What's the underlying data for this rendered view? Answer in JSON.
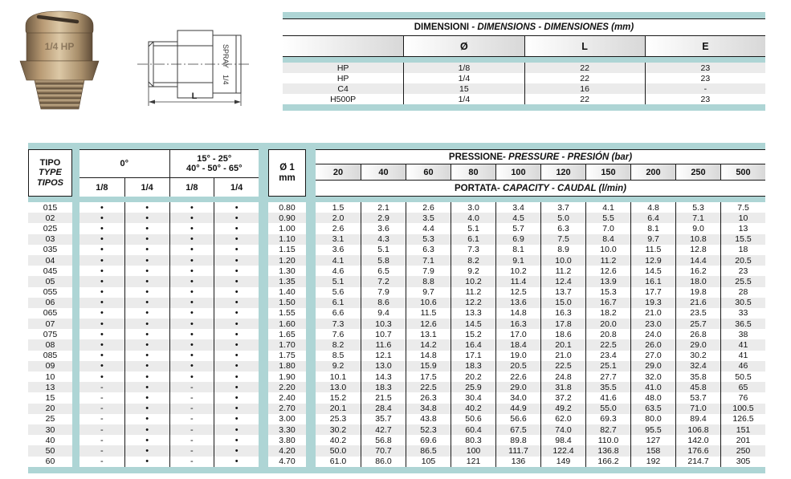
{
  "colors": {
    "teal": "#aed5d5",
    "stripe": "#ebebeb",
    "header_gradient_start": "#ffffff",
    "header_gradient_end": "#d8d8d8",
    "line": "#1a1a1a",
    "brass_light": "#dcc8a6",
    "brass_mid": "#b0946e",
    "brass_dark": "#6e5a42"
  },
  "technical_drawing": {
    "dimension_label": "L",
    "body_text_line1": "SPRAY",
    "body_text_line2": "1/4"
  },
  "dimensions_table": {
    "title_main": "DIMENSIONI",
    "title_rest": " - DIMENSIONS - DIMENSIONES (mm)",
    "columns": [
      "",
      "Ø",
      "L",
      "E"
    ],
    "rows": [
      [
        "HP",
        "1/8",
        "22",
        "23"
      ],
      [
        "HP",
        "1/4",
        "22",
        "23"
      ],
      [
        "C4",
        "15",
        "16",
        "-"
      ],
      [
        "H500P",
        "1/4",
        "22",
        "23"
      ]
    ]
  },
  "main_table": {
    "type_header_lines": [
      "TIPO",
      "TYPE",
      "TIPOS"
    ],
    "angle_group_1": {
      "label": "0°",
      "subcols": [
        "1/8",
        "1/4"
      ]
    },
    "angle_group_2": {
      "label_line1": "15° - 25°",
      "label_line2": "40° - 50° - 65°",
      "subcols": [
        "1/8",
        "1/4"
      ]
    },
    "diameter_header_line1": "Ø 1",
    "diameter_header_line2": "mm",
    "pressure_title_main": "PRESSIONE",
    "pressure_title_rest": " - PRESSURE - PRESIÓN (bar)",
    "pressures": [
      "20",
      "40",
      "60",
      "80",
      "100",
      "120",
      "150",
      "200",
      "250",
      "500"
    ],
    "capacity_title_main": "PORTATA",
    "capacity_title_rest": " - CAPACITY - CAUDAL (l/min)",
    "rows": [
      {
        "tipo": "015",
        "marks": [
          "•",
          "•",
          "•",
          "•"
        ],
        "diameter": "0.80",
        "values": [
          "1.5",
          "2.1",
          "2.6",
          "3.0",
          "3.4",
          "3.7",
          "4.1",
          "4.8",
          "5.3",
          "7.5"
        ]
      },
      {
        "tipo": "02",
        "marks": [
          "•",
          "•",
          "•",
          "•"
        ],
        "diameter": "0.90",
        "values": [
          "2.0",
          "2.9",
          "3.5",
          "4.0",
          "4.5",
          "5.0",
          "5.5",
          "6.4",
          "7.1",
          "10"
        ]
      },
      {
        "tipo": "025",
        "marks": [
          "•",
          "•",
          "•",
          "•"
        ],
        "diameter": "1.00",
        "values": [
          "2.6",
          "3.6",
          "4.4",
          "5.1",
          "5.7",
          "6.3",
          "7.0",
          "8.1",
          "9.0",
          "13"
        ]
      },
      {
        "tipo": "03",
        "marks": [
          "•",
          "•",
          "•",
          "•"
        ],
        "diameter": "1.10",
        "values": [
          "3.1",
          "4.3",
          "5.3",
          "6.1",
          "6.9",
          "7.5",
          "8.4",
          "9.7",
          "10.8",
          "15.5"
        ]
      },
      {
        "tipo": "035",
        "marks": [
          "•",
          "•",
          "•",
          "•"
        ],
        "diameter": "1.15",
        "values": [
          "3.6",
          "5.1",
          "6.3",
          "7.3",
          "8.1",
          "8.9",
          "10.0",
          "11.5",
          "12.8",
          "18"
        ]
      },
      {
        "tipo": "04",
        "marks": [
          "•",
          "•",
          "•",
          "•"
        ],
        "diameter": "1.20",
        "values": [
          "4.1",
          "5.8",
          "7.1",
          "8.2",
          "9.1",
          "10.0",
          "11.2",
          "12.9",
          "14.4",
          "20.5"
        ]
      },
      {
        "tipo": "045",
        "marks": [
          "•",
          "•",
          "•",
          "•"
        ],
        "diameter": "1.30",
        "values": [
          "4.6",
          "6.5",
          "7.9",
          "9.2",
          "10.2",
          "11.2",
          "12.6",
          "14.5",
          "16.2",
          "23"
        ]
      },
      {
        "tipo": "05",
        "marks": [
          "•",
          "•",
          "•",
          "•"
        ],
        "diameter": "1.35",
        "values": [
          "5.1",
          "7.2",
          "8.8",
          "10.2",
          "11.4",
          "12.4",
          "13.9",
          "16.1",
          "18.0",
          "25.5"
        ]
      },
      {
        "tipo": "055",
        "marks": [
          "•",
          "•",
          "•",
          "•"
        ],
        "diameter": "1.40",
        "values": [
          "5.6",
          "7.9",
          "9.7",
          "11.2",
          "12.5",
          "13.7",
          "15.3",
          "17.7",
          "19.8",
          "28"
        ]
      },
      {
        "tipo": "06",
        "marks": [
          "•",
          "•",
          "•",
          "•"
        ],
        "diameter": "1.50",
        "values": [
          "6.1",
          "8.6",
          "10.6",
          "12.2",
          "13.6",
          "15.0",
          "16.7",
          "19.3",
          "21.6",
          "30.5"
        ]
      },
      {
        "tipo": "065",
        "marks": [
          "•",
          "•",
          "•",
          "•"
        ],
        "diameter": "1.55",
        "values": [
          "6.6",
          "9.4",
          "11.5",
          "13.3",
          "14.8",
          "16.3",
          "18.2",
          "21.0",
          "23.5",
          "33"
        ]
      },
      {
        "tipo": "07",
        "marks": [
          "•",
          "•",
          "•",
          "•"
        ],
        "diameter": "1.60",
        "values": [
          "7.3",
          "10.3",
          "12.6",
          "14.5",
          "16.3",
          "17.8",
          "20.0",
          "23.0",
          "25.7",
          "36.5"
        ]
      },
      {
        "tipo": "075",
        "marks": [
          "•",
          "•",
          "•",
          "•"
        ],
        "diameter": "1.65",
        "values": [
          "7.6",
          "10.7",
          "13.1",
          "15.2",
          "17.0",
          "18.6",
          "20.8",
          "24.0",
          "26.8",
          "38"
        ]
      },
      {
        "tipo": "08",
        "marks": [
          "•",
          "•",
          "•",
          "•"
        ],
        "diameter": "1.70",
        "values": [
          "8.2",
          "11.6",
          "14.2",
          "16.4",
          "18.4",
          "20.1",
          "22.5",
          "26.0",
          "29.0",
          "41"
        ]
      },
      {
        "tipo": "085",
        "marks": [
          "•",
          "•",
          "•",
          "•"
        ],
        "diameter": "1.75",
        "values": [
          "8.5",
          "12.1",
          "14.8",
          "17.1",
          "19.0",
          "21.0",
          "23.4",
          "27.0",
          "30.2",
          "41"
        ]
      },
      {
        "tipo": "09",
        "marks": [
          "•",
          "•",
          "•",
          "•"
        ],
        "diameter": "1.80",
        "values": [
          "9.2",
          "13.0",
          "15.9",
          "18.3",
          "20.5",
          "22.5",
          "25.1",
          "29.0",
          "32.4",
          "46"
        ]
      },
      {
        "tipo": "10",
        "marks": [
          "•",
          "•",
          "•",
          "•"
        ],
        "diameter": "1.90",
        "values": [
          "10.1",
          "14.3",
          "17.5",
          "20.2",
          "22.6",
          "24.8",
          "27.7",
          "32.0",
          "35.8",
          "50.5"
        ]
      },
      {
        "tipo": "13",
        "marks": [
          "-",
          "•",
          "-",
          "•"
        ],
        "diameter": "2.20",
        "values": [
          "13.0",
          "18.3",
          "22.5",
          "25.9",
          "29.0",
          "31.8",
          "35.5",
          "41.0",
          "45.8",
          "65"
        ]
      },
      {
        "tipo": "15",
        "marks": [
          "-",
          "•",
          "-",
          "•"
        ],
        "diameter": "2.40",
        "values": [
          "15.2",
          "21.5",
          "26.3",
          "30.4",
          "34.0",
          "37.2",
          "41.6",
          "48.0",
          "53.7",
          "76"
        ]
      },
      {
        "tipo": "20",
        "marks": [
          "-",
          "•",
          "-",
          "•"
        ],
        "diameter": "2.70",
        "values": [
          "20.1",
          "28.4",
          "34.8",
          "40.2",
          "44.9",
          "49.2",
          "55.0",
          "63.5",
          "71.0",
          "100.5"
        ]
      },
      {
        "tipo": "25",
        "marks": [
          "-",
          "•",
          "-",
          "•"
        ],
        "diameter": "3.00",
        "values": [
          "25.3",
          "35.7",
          "43.8",
          "50.6",
          "56.6",
          "62.0",
          "69.3",
          "80.0",
          "89.4",
          "126.5"
        ]
      },
      {
        "tipo": "30",
        "marks": [
          "-",
          "•",
          "-",
          "•"
        ],
        "diameter": "3.30",
        "values": [
          "30.2",
          "42.7",
          "52.3",
          "60.4",
          "67.5",
          "74.0",
          "82.7",
          "95.5",
          "106.8",
          "151"
        ]
      },
      {
        "tipo": "40",
        "marks": [
          "-",
          "•",
          "-",
          "•"
        ],
        "diameter": "3.80",
        "values": [
          "40.2",
          "56.8",
          "69.6",
          "80.3",
          "89.8",
          "98.4",
          "110.0",
          "127",
          "142.0",
          "201"
        ]
      },
      {
        "tipo": "50",
        "marks": [
          "-",
          "•",
          "-",
          "•"
        ],
        "diameter": "4.20",
        "values": [
          "50.0",
          "70.7",
          "86.5",
          "100",
          "111.7",
          "122.4",
          "136.8",
          "158",
          "176.6",
          "250"
        ]
      },
      {
        "tipo": "60",
        "marks": [
          "-",
          "•",
          "-",
          "•"
        ],
        "diameter": "4.70",
        "values": [
          "61.0",
          "86.0",
          "105",
          "121",
          "136",
          "149",
          "166.2",
          "192",
          "214.7",
          "305"
        ]
      }
    ]
  }
}
